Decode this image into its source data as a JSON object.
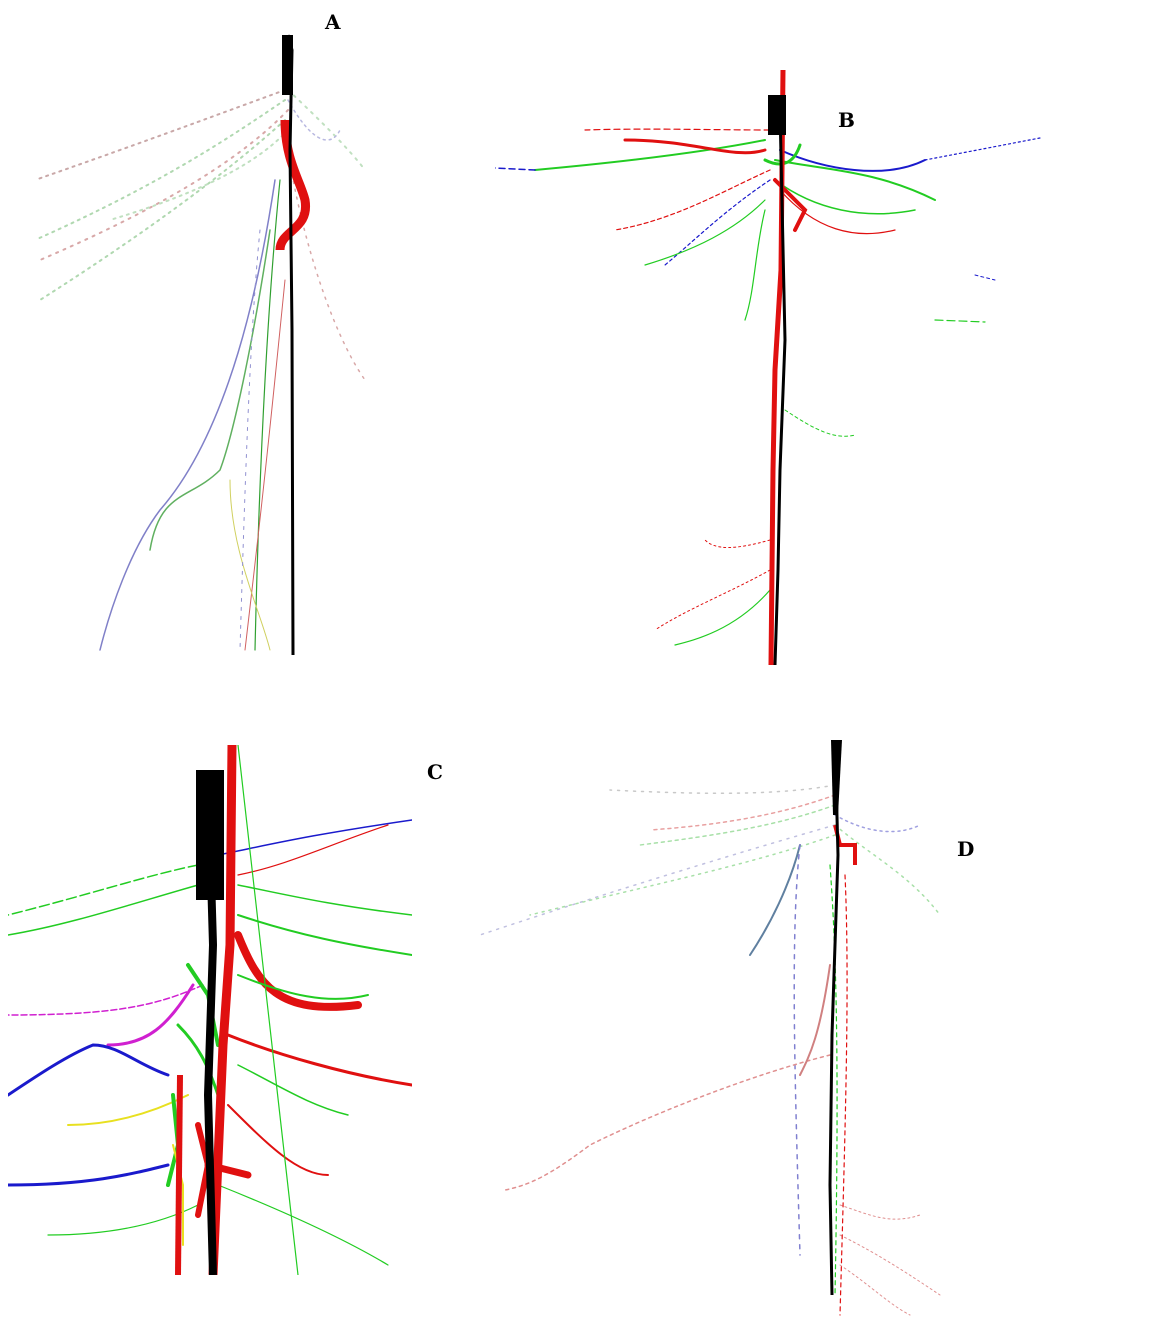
{
  "panels": [
    {
      "label": "A",
      "description_icon": "root-system-sparse-dotted"
    },
    {
      "label": "B",
      "description_icon": "root-system-shallow-dense"
    },
    {
      "label": "C",
      "description_icon": "root-system-closeup-thick"
    },
    {
      "label": "D",
      "description_icon": "root-system-faint-dotted"
    }
  ],
  "colors": {
    "taproot": "#000000",
    "red": "#e01010",
    "green": "#22cc22",
    "blue": "#1a1acc",
    "yellow": "#e8e020",
    "magenta": "#d020d0",
    "faint_red": "#e8a0a0",
    "faint_green": "#a8e0a8",
    "faint_blue": "#a0a0e0"
  }
}
